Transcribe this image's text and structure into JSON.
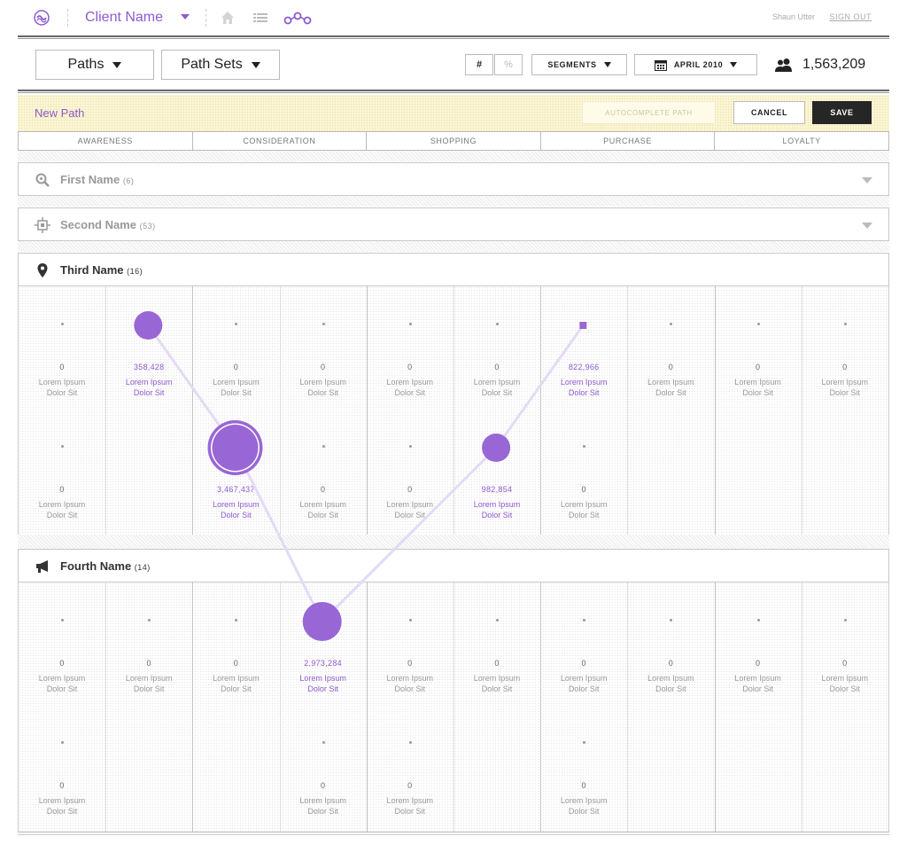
{
  "header": {
    "client_name": "Client Name",
    "user_name": "Shaun Utter",
    "sign_out": "SIGN OUT"
  },
  "toolbar": {
    "paths_label": "Paths",
    "path_sets_label": "Path Sets",
    "toggle_count": "#",
    "toggle_percent": "%",
    "segments_label": "SEGMENTS",
    "date_label": "APRIL 2010",
    "visitor_count": "1,563,209"
  },
  "new_path": {
    "title": "New Path",
    "autocomplete_label": "AUTOCOMPLETE PATH",
    "cancel_label": "CANCEL",
    "save_label": "SAVE"
  },
  "stages": [
    "AWARENESS",
    "CONSIDERATION",
    "SHOPPING",
    "PURCHASE",
    "LOYALTY"
  ],
  "sections": [
    {
      "title": "First Name",
      "count": "(6)",
      "icon": "search-icon",
      "collapsed": true
    },
    {
      "title": "Second Name",
      "count": "(53)",
      "icon": "target-icon",
      "collapsed": true
    },
    {
      "title": "Third Name",
      "count": "(16)",
      "icon": "map-pin-icon",
      "collapsed": false
    },
    {
      "title": "Fourth Name",
      "count": "(14)",
      "icon": "megaphone-icon",
      "collapsed": false
    }
  ],
  "cell_label_line1": "Lorem Ipsum",
  "cell_label_line2": "Dolor Sit",
  "grid_third": {
    "row1": [
      "0",
      "358,428",
      "0",
      "0",
      "0",
      "0",
      "822,966",
      "0",
      "0",
      "0"
    ],
    "row2": [
      "0",
      "",
      "3,467,437",
      "0",
      "0",
      "982,854",
      "0",
      "",
      "",
      ""
    ]
  },
  "grid_fourth": {
    "row1": [
      "0",
      "0",
      "0",
      "2,973,284",
      "0",
      "0",
      "0",
      "0",
      "0",
      "0"
    ],
    "row2": [
      "0",
      "",
      "",
      "0",
      "0",
      "",
      "0",
      "",
      "",
      ""
    ]
  },
  "path_nodes": [
    {
      "section": "third",
      "row": 1,
      "col": 2,
      "value": "358,428",
      "size": "medium"
    },
    {
      "section": "third",
      "row": 2,
      "col": 3,
      "value": "3,467,437",
      "size": "large"
    },
    {
      "section": "fourth",
      "row": 1,
      "col": 4,
      "value": "2,973,284",
      "size": "large"
    },
    {
      "section": "third",
      "row": 2,
      "col": 6,
      "value": "982,854",
      "size": "medium"
    },
    {
      "section": "third",
      "row": 1,
      "col": 7,
      "value": "822,966",
      "size": "small"
    }
  ],
  "colors": {
    "accent": "#8c5ad0",
    "node": "#9966d6",
    "path_line": "#e4daf5",
    "save_bg": "#262626",
    "highlight_bar": "#fdf8dc"
  }
}
